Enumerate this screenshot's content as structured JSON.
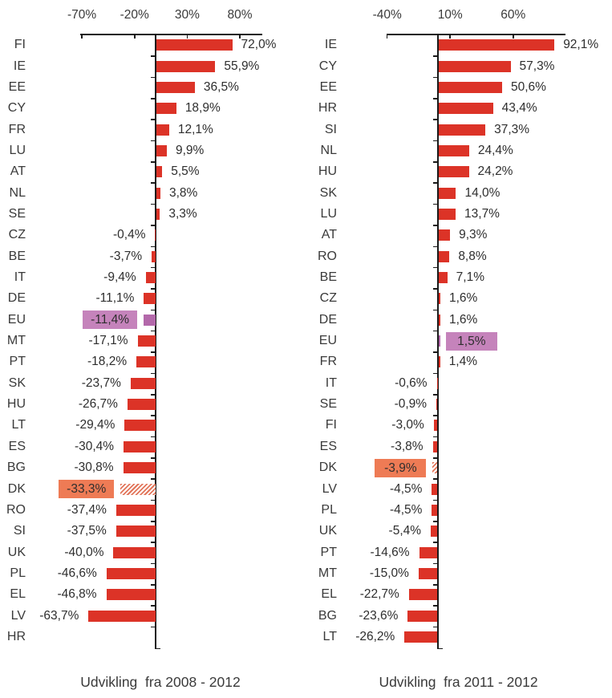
{
  "figure": {
    "background": "#ffffff",
    "axis_color": "#1a1a1a",
    "text_color": "#3a3a3a"
  },
  "chart_data": [
    {
      "type": "bar",
      "orientation": "horizontal",
      "title": "Udvikling  fra 2008 - 2012",
      "x_axis": {
        "position": "top",
        "tick_labels": [
          "-70%",
          "-20%",
          "30%",
          "80%"
        ],
        "tick_values": [
          -70,
          -20,
          30,
          80
        ],
        "range": [
          -71.5,
          101.3
        ]
      },
      "bar_color": "#dc3327",
      "value_label_format": "decimal-comma-percent",
      "categories": [
        "FI",
        "IE",
        "EE",
        "CY",
        "FR",
        "LU",
        "AT",
        "NL",
        "SE",
        "CZ",
        "BE",
        "IT",
        "DE",
        "EU",
        "MT",
        "PT",
        "SK",
        "HU",
        "LT",
        "ES",
        "BG",
        "DK",
        "RO",
        "SI",
        "UK",
        "PL",
        "EL",
        "LV",
        "HR"
      ],
      "values": [
        72.0,
        55.9,
        36.5,
        18.9,
        12.1,
        9.9,
        5.5,
        3.8,
        3.3,
        -0.4,
        -3.7,
        -9.4,
        -11.1,
        -11.4,
        -17.1,
        -18.2,
        -23.7,
        -26.7,
        -29.4,
        -30.4,
        -30.8,
        -33.3,
        -37.4,
        -37.5,
        -40.0,
        -46.6,
        -46.8,
        -63.7,
        null
      ],
      "labels": [
        "72,0%",
        "55,9%",
        "36,5%",
        "18,9%",
        "12,1%",
        "9,9%",
        "5,5%",
        "3,8%",
        "3,3%",
        "-0,4%",
        "-3,7%",
        "-9,4%",
        "-11,1%",
        "-11,4%",
        "-17,1%",
        "-18,2%",
        "-23,7%",
        "-26,7%",
        "-29,4%",
        "-30,4%",
        "-30,8%",
        "-33,3%",
        "-37,4%",
        "-37,5%",
        "-40,0%",
        "-46,6%",
        "-46,8%",
        "-63,7%",
        ""
      ],
      "highlights": [
        {
          "category": "EU",
          "style": "purple-solid",
          "label_bg": "#c583bb",
          "bar_color": "#b368aa"
        },
        {
          "category": "DK",
          "style": "orange-hatched",
          "label_bg": "#ee7b55",
          "hatch_color": "#e2755a"
        }
      ]
    },
    {
      "type": "bar",
      "orientation": "horizontal",
      "title": "Udvikling  fra 2011 - 2012",
      "x_axis": {
        "position": "top",
        "tick_labels": [
          "-40%",
          "10%",
          "60%"
        ],
        "tick_values": [
          -40,
          10,
          60
        ],
        "range": [
          -40.3,
          101.5
        ]
      },
      "bar_color": "#dc3327",
      "value_label_format": "decimal-comma-percent",
      "categories": [
        "IE",
        "CY",
        "EE",
        "HR",
        "SI",
        "NL",
        "HU",
        "SK",
        "LU",
        "AT",
        "RO",
        "BE",
        "CZ",
        "DE",
        "EU",
        "FR",
        "IT",
        "SE",
        "FI",
        "ES",
        "DK",
        "LV",
        "PL",
        "UK",
        "PT",
        "MT",
        "EL",
        "BG",
        "LT"
      ],
      "values": [
        92.1,
        57.3,
        50.6,
        43.4,
        37.3,
        24.4,
        24.2,
        14.0,
        13.7,
        9.3,
        8.8,
        7.1,
        1.6,
        1.6,
        1.5,
        1.4,
        -0.6,
        -0.9,
        -3.0,
        -3.8,
        -3.9,
        -4.5,
        -4.5,
        -5.4,
        -14.6,
        -15.0,
        -22.7,
        -23.6,
        -26.2
      ],
      "labels": [
        "92,1%",
        "57,3%",
        "50,6%",
        "43,4%",
        "37,3%",
        "24,4%",
        "24,2%",
        "14,0%",
        "13,7%",
        "9,3%",
        "8,8%",
        "7,1%",
        "1,6%",
        "1,6%",
        "1,5%",
        "1,4%",
        "-0,6%",
        "-0,9%",
        "-3,0%",
        "-3,8%",
        "-3,9%",
        "-4,5%",
        "-4,5%",
        "-5,4%",
        "-14,6%",
        "-15,0%",
        "-22,7%",
        "-23,6%",
        "-26,2%"
      ],
      "highlights": [
        {
          "category": "EU",
          "style": "purple-solid",
          "label_bg": "#c583bb",
          "bar_color": "#b368aa"
        },
        {
          "category": "DK",
          "style": "orange-hatched",
          "label_bg": "#ee7b55",
          "hatch_color": "#e2755a"
        }
      ]
    }
  ]
}
